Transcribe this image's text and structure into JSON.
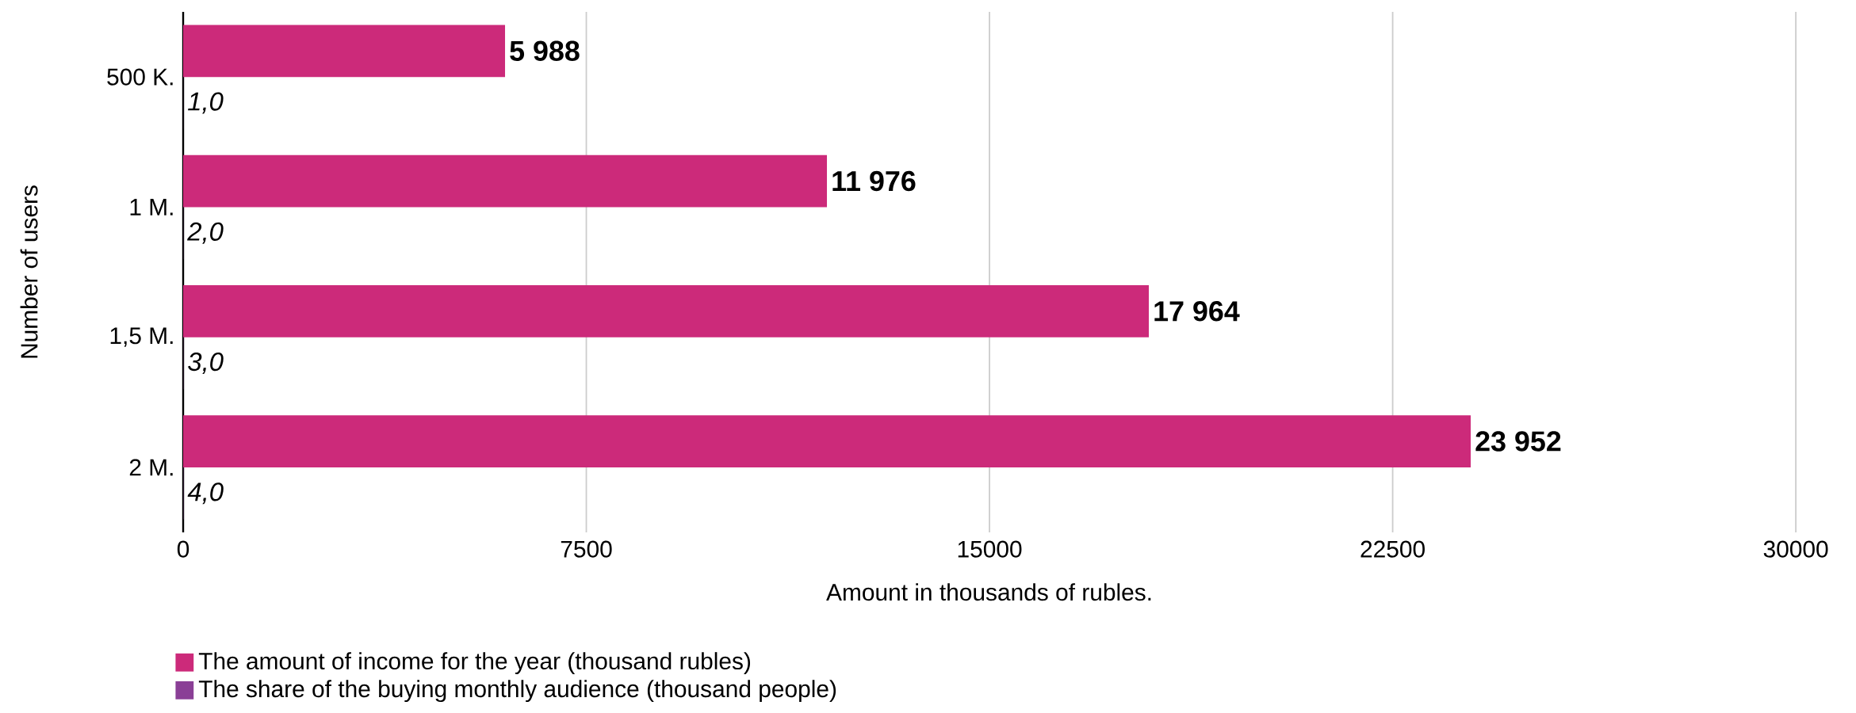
{
  "chart_data": {
    "type": "bar",
    "orientation": "horizontal",
    "xlabel": "Amount in thousands of rubles.",
    "ylabel": "Number of users",
    "categories": [
      "500 K.",
      "1 M.",
      "1,5 M.",
      "2 M."
    ],
    "series": [
      {
        "name": "The amount of income for the year (thousand rubles)",
        "color": "#cc2a7a",
        "values": [
          5988,
          11976,
          17964,
          23952
        ],
        "value_labels": [
          "5 988",
          "11 976",
          "17 964",
          "23 952"
        ]
      },
      {
        "name": "The share of the buying monthly audience (thousand people)",
        "color": "#8a3f96",
        "values": [
          1.0,
          2.0,
          3.0,
          4.0
        ],
        "value_labels": [
          "1,0",
          "2,0",
          "3,0",
          "4,0"
        ]
      }
    ],
    "xlim": [
      0,
      30000
    ],
    "xticks": [
      0,
      7500,
      15000,
      22500,
      30000
    ],
    "grid": "x",
    "legend": "bottom"
  }
}
